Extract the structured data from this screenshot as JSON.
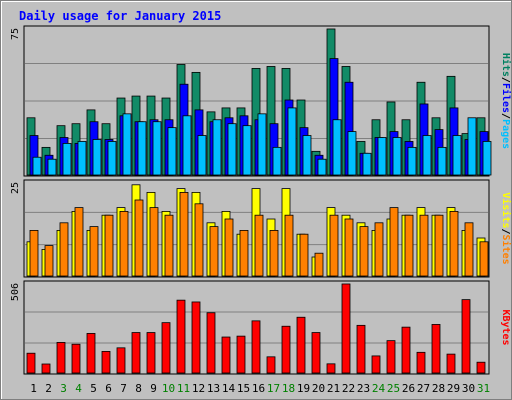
{
  "chart_data": {
    "type": "bar",
    "title": "Daily usage for January 2015",
    "categories": [
      "1",
      "2",
      "3",
      "4",
      "5",
      "6",
      "7",
      "8",
      "9",
      "10",
      "11",
      "12",
      "13",
      "14",
      "15",
      "16",
      "17",
      "18",
      "19",
      "20",
      "21",
      "22",
      "23",
      "24",
      "25",
      "26",
      "27",
      "28",
      "29",
      "30",
      "31"
    ],
    "weekend_days": [
      "3",
      "4",
      "10",
      "11",
      "17",
      "18",
      "24",
      "25",
      "31"
    ],
    "panels": [
      {
        "id": "hits",
        "y_max_label": "75",
        "ylim": [
          0,
          75
        ],
        "axis_label_parts": [
          {
            "text": "Pages",
            "color": "#00bfff"
          },
          {
            "text": "/",
            "color": "#000000"
          },
          {
            "text": "Files",
            "color": "#0000ff"
          },
          {
            "text": "/",
            "color": "#000000"
          },
          {
            "text": "Hits",
            "color": "#008060"
          }
        ],
        "series": [
          {
            "name": "Hits",
            "color": "#128b67",
            "values": [
              29,
              14,
              25,
              26,
              33,
              26,
              39,
              40,
              40,
              39,
              56,
              52,
              32,
              34,
              34,
              54,
              55,
              54,
              38,
              12,
              74,
              55,
              17,
              28,
              37,
              28,
              47,
              29,
              50,
              21,
              29
            ]
          },
          {
            "name": "Files",
            "color": "#0000ff",
            "values": [
              20,
              10,
              19,
              16,
              27,
              18,
              30,
              27,
              28,
              28,
              46,
              33,
              27,
              29,
              30,
              28,
              26,
              38,
              24,
              10,
              59,
              47,
              11,
              19,
              22,
              17,
              36,
              23,
              34,
              18,
              22
            ]
          },
          {
            "name": "Pages",
            "color": "#00bfff",
            "values": [
              9,
              8,
              16,
              17,
              18,
              17,
              31,
              27,
              27,
              24,
              30,
              20,
              28,
              26,
              25,
              31,
              14,
              34,
              20,
              8,
              28,
              22,
              11,
              19,
              19,
              14,
              20,
              14,
              20,
              29,
              17
            ]
          }
        ]
      },
      {
        "id": "visits",
        "y_max_label": "25",
        "ylim": [
          0,
          25
        ],
        "axis_label_parts": [
          {
            "text": "Sites",
            "color": "#ff8000"
          },
          {
            "text": "/",
            "color": "#000000"
          },
          {
            "text": "Visits",
            "color": "#ffff00"
          }
        ],
        "series": [
          {
            "name": "Visits",
            "color": "#ffff00",
            "values": [
              9,
              7,
              12,
              17,
              12,
              16,
              18,
              24,
              22,
              17,
              23,
              22,
              14,
              17,
              11,
              23,
              15,
              23,
              11,
              5,
              18,
              16,
              14,
              12,
              15,
              16,
              18,
              16,
              18,
              12,
              10
            ]
          },
          {
            "name": "Sites",
            "color": "#ff8000",
            "values": [
              12,
              8,
              14,
              18,
              13,
              16,
              17,
              20,
              18,
              16,
              22,
              19,
              13,
              15,
              12,
              16,
              12,
              16,
              11,
              6,
              16,
              15,
              13,
              14,
              18,
              16,
              16,
              16,
              17,
              14,
              9
            ]
          }
        ]
      },
      {
        "id": "kbytes",
        "y_max_label": "506",
        "ylim": [
          0,
          506
        ],
        "axis_label_parts": [
          {
            "text": "KBytes",
            "color": "#ff0000"
          }
        ],
        "series": [
          {
            "name": "KBytes",
            "color": "#ff0000",
            "values": [
              110,
              50,
              170,
              160,
              220,
              120,
              140,
              225,
              225,
              280,
              405,
              395,
              335,
              200,
              205,
              290,
              90,
              260,
              310,
              225,
              51,
              495,
              265,
              95,
              180,
              255,
              115,
              270,
              105,
              408,
              60
            ]
          }
        ]
      }
    ]
  }
}
